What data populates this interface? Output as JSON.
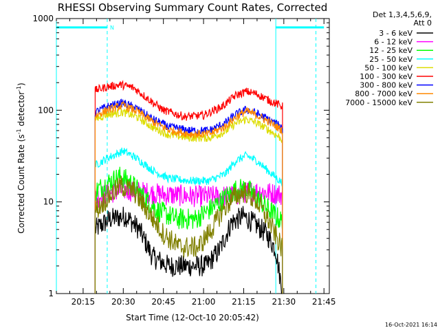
{
  "chart_data": {
    "type": "line",
    "title": "RHESSI Observing Summary Count Rates, Corrected",
    "xlabel": "Start Time (12-Oct-10 20:05:42)",
    "ylabel_main": "Corrected Count Rate (s",
    "ylabel_sup1": "-1",
    "ylabel_mid": " detector",
    "ylabel_sup2": "-1",
    "ylabel_end": ")",
    "y_scale": "log",
    "ylim": [
      1,
      1000
    ],
    "xlim_minutes": [
      0,
      102
    ],
    "x_tick_minutes": [
      10,
      25,
      40,
      55,
      70,
      85,
      100
    ],
    "x_tick_labels": [
      "20:15",
      "20:30",
      "20:45",
      "21:00",
      "21:15",
      "21:30",
      "21:45"
    ],
    "y_tick_values": [
      1,
      10,
      100,
      1000
    ],
    "y_tick_labels": [
      "1",
      "10",
      "100",
      "1000"
    ],
    "legend_header": [
      "Det 1,3,4,5,6,9,",
      "Att 0"
    ],
    "legend_position": "right",
    "data_window_minutes": [
      14.5,
      84.5
    ],
    "flags": {
      "night_line_y": 800,
      "night_segments_minutes": [
        [
          0,
          19
        ],
        [
          82,
          100
        ]
      ],
      "saa_dashed_minutes": [
        19,
        97
      ],
      "eclipse_solid_minutes": [
        0,
        82
      ],
      "night_label": "N",
      "color": "#00ffff"
    },
    "series": [
      {
        "name": "3 - 6 keV",
        "color": "#000000",
        "x": [
          14.5,
          20,
          26,
          31,
          36,
          42,
          49,
          56,
          61,
          65.5,
          70,
          75,
          78.5,
          82,
          84.5
        ],
        "y": [
          5,
          6.5,
          7,
          5,
          2.5,
          2,
          2,
          2,
          3,
          6,
          7,
          5.5,
          4.5,
          3,
          1
        ]
      },
      {
        "name": "6 - 12 keV",
        "color": "#ff00ff",
        "x": [
          14.5,
          20,
          25,
          30,
          40,
          52,
          62,
          68,
          72,
          76,
          80,
          84.5
        ],
        "y": [
          11,
          12.5,
          13.5,
          13,
          12,
          11.5,
          11.5,
          12,
          13,
          13,
          12.5,
          12
        ]
      },
      {
        "name": "12 - 25 keV",
        "color": "#00ff00",
        "x": [
          14.5,
          19,
          24,
          28,
          33,
          38,
          45,
          52,
          58,
          63,
          67,
          70.5,
          74,
          78,
          84.5
        ],
        "y": [
          13,
          16,
          19,
          16,
          11,
          8,
          6.5,
          6.5,
          8.5,
          11,
          13.5,
          14,
          12,
          9,
          6
        ]
      },
      {
        "name": "25 - 50 keV",
        "color": "#00ffff",
        "x": [
          14.5,
          19,
          25,
          30,
          36,
          42,
          50,
          57,
          63,
          67,
          71,
          75,
          79,
          84.5
        ],
        "y": [
          25,
          30,
          36,
          30,
          22,
          18,
          17,
          17,
          20,
          28,
          32,
          28,
          22,
          16
        ]
      },
      {
        "name": "50 - 100 keV",
        "color": "#dddd00",
        "x": [
          14.5,
          19,
          25,
          30,
          36,
          42,
          50,
          57,
          63,
          67,
          71,
          75,
          79,
          84.5
        ],
        "y": [
          80,
          90,
          95,
          85,
          65,
          54,
          50,
          50,
          58,
          72,
          80,
          72,
          62,
          48
        ]
      },
      {
        "name": "100 - 300 keV",
        "color": "#ff0000",
        "x": [
          14.5,
          19,
          24,
          29,
          34,
          40,
          48,
          55,
          62,
          67,
          71,
          75,
          79,
          84.5
        ],
        "y": [
          165,
          180,
          190,
          175,
          135,
          100,
          85,
          88,
          110,
          145,
          160,
          150,
          130,
          110
        ]
      },
      {
        "name": "300 - 800 keV",
        "color": "#0000ff",
        "x": [
          14.5,
          19,
          25,
          30,
          36,
          42,
          50,
          57,
          63,
          67,
          71,
          75,
          79,
          84.5
        ],
        "y": [
          95,
          110,
          120,
          105,
          80,
          66,
          60,
          60,
          72,
          90,
          102,
          92,
          80,
          65
        ]
      },
      {
        "name": "800 - 7000 keV",
        "color": "#ff8800",
        "x": [
          14.5,
          19,
          25,
          30,
          36,
          42,
          50,
          57,
          63,
          67,
          71,
          75,
          79,
          84.5
        ],
        "y": [
          87,
          100,
          113,
          98,
          75,
          61,
          55,
          55,
          66,
          84,
          98,
          88,
          76,
          60
        ]
      },
      {
        "name": "7000 - 15000 keV",
        "color": "#808000",
        "x": [
          14.5,
          19,
          24,
          29,
          34,
          40,
          46,
          53,
          58,
          62,
          66,
          70.5,
          75,
          79,
          84.5
        ],
        "y": [
          8,
          11,
          15,
          13,
          8,
          4.5,
          3.2,
          3.2,
          5,
          8,
          11,
          13,
          10,
          6.5,
          3
        ]
      }
    ]
  },
  "footer": {
    "timestamp": "16-Oct-2021 16:14"
  }
}
